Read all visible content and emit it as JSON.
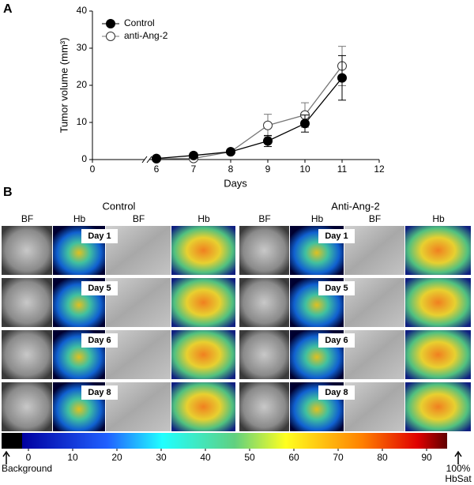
{
  "panel_a_label": "A",
  "chart_data": {
    "type": "line",
    "xlabel": "Days",
    "ylabel": "Tumor volume (mm³)",
    "x": [
      6,
      7,
      8,
      9,
      10,
      11
    ],
    "series": [
      {
        "name": "Control",
        "color": "#000000",
        "marker": "filled",
        "values": [
          0.3,
          1.1,
          2.1,
          5,
          9.7,
          22
        ],
        "errors": [
          0.2,
          0.3,
          0.3,
          1.5,
          2.3,
          6
        ]
      },
      {
        "name": "anti-Ang-2",
        "color": "#777777",
        "marker": "open",
        "values": [
          0.2,
          0.3,
          2.1,
          9.2,
          12,
          25.2
        ],
        "errors": [
          0.2,
          0.2,
          0.3,
          3,
          3.3,
          5.3
        ]
      }
    ],
    "xlim": [
      0,
      12
    ],
    "xticks": [
      0,
      6,
      7,
      8,
      9,
      10,
      11,
      12
    ],
    "axis_break": [
      0,
      6
    ],
    "ylim": [
      0,
      40
    ],
    "yticks": [
      0,
      10,
      20,
      30,
      40
    ],
    "legend": "upper left"
  },
  "panel_b": {
    "label": "B",
    "groups": [
      {
        "title": "Control",
        "columns": [
          "BF",
          "Hb",
          "BF",
          "Hb"
        ],
        "days": [
          "Day 1",
          "Day 5",
          "Day 6",
          "Day 8"
        ]
      },
      {
        "title": "Anti-Ang-2",
        "columns": [
          "BF",
          "Hb",
          "BF",
          "Hb"
        ],
        "days": [
          "Day 1",
          "Day 5",
          "Day 6",
          "Day 8"
        ]
      }
    ],
    "colorbar": {
      "ticks": [
        0,
        10,
        20,
        30,
        40,
        50,
        60,
        70,
        80,
        90
      ],
      "left_label": "Background",
      "right_label": [
        "100%",
        "HbSat"
      ]
    }
  }
}
